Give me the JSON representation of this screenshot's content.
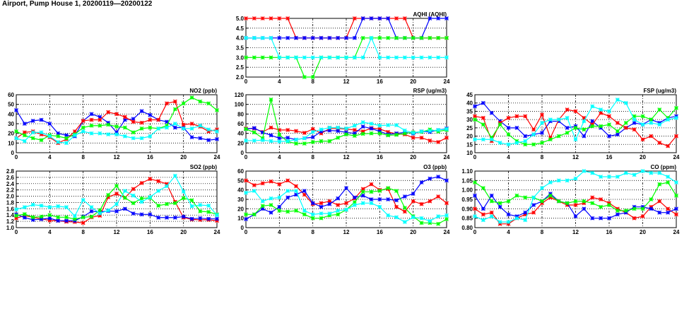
{
  "page_title": "Airport, Pump House 1, 20200119—20200122",
  "colors": {
    "red": "#ff0000",
    "blue": "#0000ff",
    "green": "#00ff00",
    "cyan": "#00ffff"
  },
  "chart_data": [
    {
      "id": "aqhi",
      "type": "line",
      "title": "AQHI (AQHI)",
      "xlim": [
        0,
        24
      ],
      "xticks": [
        0,
        4,
        8,
        12,
        16,
        20,
        24
      ],
      "ylim": [
        2.0,
        5.0
      ],
      "ystep": 0.5,
      "ydecimals": 1,
      "grid": true,
      "series": [
        {
          "color": "#ff0000",
          "values": [
            5,
            5,
            5,
            5,
            5,
            5,
            4,
            4,
            4,
            4,
            4,
            4,
            4,
            5,
            5,
            5,
            5,
            5,
            5,
            5,
            4,
            4,
            4,
            4,
            4
          ]
        },
        {
          "color": "#0000ff",
          "values": [
            4,
            4,
            4,
            4,
            4,
            4,
            4,
            4,
            4,
            4,
            4,
            4,
            4,
            4,
            5,
            5,
            5,
            5,
            4,
            4,
            4,
            4,
            5,
            5,
            5
          ]
        },
        {
          "color": "#00ff00",
          "values": [
            3,
            3,
            3,
            3,
            3,
            3,
            3,
            2,
            2,
            3,
            3,
            3,
            3,
            3,
            4,
            4,
            4,
            4,
            4,
            4,
            4,
            4,
            4,
            4,
            4
          ]
        },
        {
          "color": "#00ffff",
          "values": [
            4,
            4,
            4,
            4,
            3,
            3,
            3,
            3,
            3,
            3,
            3,
            3,
            3,
            3,
            3,
            4,
            3,
            3,
            3,
            3,
            3,
            3,
            3,
            3,
            3
          ]
        }
      ]
    },
    {
      "id": "no2",
      "type": "line",
      "title": "NO2 (ppb)",
      "xlim": [
        0,
        24
      ],
      "xticks": [
        0,
        4,
        8,
        12,
        16,
        20,
        24
      ],
      "ylim": [
        0,
        60
      ],
      "ystep": 10,
      "ydecimals": 0,
      "grid": true,
      "series": [
        {
          "color": "#0000ff",
          "values": [
            44,
            30,
            33,
            34,
            30,
            20,
            18,
            17,
            33,
            40,
            37,
            31,
            21,
            34,
            35,
            43,
            39,
            34,
            32,
            26,
            26,
            16,
            15,
            13,
            14
          ]
        },
        {
          "color": "#ff0000",
          "values": [
            15,
            21,
            22,
            19,
            16,
            10,
            14,
            22,
            33,
            34,
            34,
            42,
            40,
            37,
            32,
            31,
            34,
            34,
            51,
            53,
            29,
            30,
            27,
            22,
            24
          ]
        },
        {
          "color": "#00ff00",
          "values": [
            22,
            18,
            15,
            13,
            18,
            17,
            15,
            19,
            26,
            28,
            28,
            29,
            27,
            26,
            21,
            25,
            26,
            25,
            28,
            45,
            51,
            57,
            53,
            51,
            44
          ]
        },
        {
          "color": "#00ffff",
          "values": [
            15,
            12,
            21,
            21,
            17,
            11,
            10,
            18,
            22,
            20,
            20,
            19,
            19,
            17,
            15,
            15,
            17,
            25,
            26,
            30,
            25,
            25,
            28,
            24,
            22
          ]
        }
      ]
    },
    {
      "id": "rsp",
      "type": "line",
      "title": "RSP (ug/m3)",
      "xlim": [
        0,
        24
      ],
      "xticks": [
        0,
        4,
        8,
        12,
        16,
        20,
        24
      ],
      "ylim": [
        0,
        120
      ],
      "ystep": 20,
      "ydecimals": 0,
      "grid": true,
      "series": [
        {
          "color": "#ff0000",
          "values": [
            50,
            50,
            43,
            52,
            47,
            47,
            45,
            41,
            49,
            40,
            50,
            50,
            49,
            47,
            44,
            51,
            49,
            43,
            39,
            38,
            31,
            31,
            25,
            22,
            31
          ]
        },
        {
          "color": "#0000ff",
          "values": [
            49,
            51,
            42,
            36,
            30,
            31,
            27,
            30,
            32,
            44,
            46,
            45,
            42,
            40,
            54,
            50,
            44,
            38,
            40,
            42,
            40,
            44,
            43,
            47,
            50
          ]
        },
        {
          "color": "#00ff00",
          "values": [
            49,
            42,
            30,
            110,
            37,
            23,
            19,
            19,
            22,
            24,
            24,
            31,
            38,
            35,
            39,
            40,
            40,
            36,
            37,
            40,
            42,
            43,
            48,
            44,
            47
          ]
        },
        {
          "color": "#00ffff",
          "values": [
            25,
            25,
            26,
            24,
            23,
            24,
            27,
            30,
            43,
            48,
            52,
            52,
            50,
            56,
            63,
            60,
            56,
            57,
            57,
            46,
            41,
            44,
            45,
            47,
            49
          ]
        }
      ]
    },
    {
      "id": "fsp",
      "type": "line",
      "title": "FSP (ug/m3)",
      "xlim": [
        0,
        24
      ],
      "xticks": [
        0,
        4,
        8,
        12,
        16,
        20,
        24
      ],
      "ylim": [
        10,
        45
      ],
      "ystep": 5,
      "ydecimals": 0,
      "grid": true,
      "series": [
        {
          "color": "#0000ff",
          "values": [
            38,
            40,
            34,
            29,
            25,
            25,
            20,
            21,
            22,
            29,
            29,
            25,
            26,
            20,
            29,
            25,
            20,
            21,
            25,
            28,
            27,
            30,
            28,
            31,
            32
          ]
        },
        {
          "color": "#ff0000",
          "values": [
            32,
            31,
            17,
            28,
            31,
            32,
            32,
            24,
            33,
            19,
            30,
            36,
            35,
            31,
            27,
            34,
            32,
            28,
            25,
            24,
            18,
            20,
            16,
            14,
            20
          ]
        },
        {
          "color": "#00ff00",
          "values": [
            30,
            27,
            19,
            27,
            21,
            17,
            15,
            15,
            16,
            18,
            20,
            22,
            25,
            24,
            26,
            26,
            27,
            23,
            28,
            32,
            32,
            30,
            36,
            31,
            37
          ]
        },
        {
          "color": "#00ffff",
          "values": [
            18,
            18,
            18,
            16,
            15,
            16,
            17,
            21,
            28,
            30,
            30,
            31,
            18,
            29,
            38,
            36,
            35,
            42,
            40,
            30,
            27,
            28,
            27,
            30,
            31
          ]
        }
      ]
    },
    {
      "id": "so2",
      "type": "line",
      "title": "SO2 (ppb)",
      "xlim": [
        0,
        24
      ],
      "xticks": [
        0,
        4,
        8,
        12,
        16,
        20,
        24
      ],
      "ylim": [
        1.0,
        2.8
      ],
      "ystep": 0.2,
      "ydecimals": 1,
      "grid": true,
      "series": [
        {
          "color": "#ff0000",
          "values": [
            1.3,
            1.38,
            1.33,
            1.28,
            1.23,
            1.22,
            1.19,
            1.18,
            1.15,
            1.33,
            1.38,
            1.97,
            2.08,
            1.95,
            2.23,
            2.42,
            2.55,
            2.48,
            2.39,
            1.82,
            1.32,
            1.26,
            1.25,
            1.25,
            1.22
          ]
        },
        {
          "color": "#0000ff",
          "values": [
            1.42,
            1.32,
            1.25,
            1.27,
            1.3,
            1.22,
            1.22,
            1.22,
            1.35,
            1.52,
            1.5,
            1.53,
            1.52,
            1.6,
            1.45,
            1.42,
            1.42,
            1.32,
            1.32,
            1.32,
            1.35,
            1.28,
            1.3,
            1.28,
            1.28
          ]
        },
        {
          "color": "#00ff00",
          "values": [
            1.38,
            1.43,
            1.33,
            1.35,
            1.4,
            1.33,
            1.33,
            1.27,
            1.33,
            1.35,
            1.55,
            2.04,
            2.33,
            1.95,
            1.78,
            1.93,
            1.95,
            1.7,
            1.75,
            1.78,
            1.94,
            1.87,
            1.52,
            1.5,
            1.42
          ]
        },
        {
          "color": "#00ffff",
          "values": [
            1.58,
            1.65,
            1.73,
            1.7,
            1.65,
            1.68,
            1.65,
            1.37,
            1.88,
            1.65,
            1.45,
            1.55,
            1.75,
            2.17,
            2.02,
            1.82,
            1.97,
            2.17,
            2.32,
            2.65,
            2.15,
            1.68,
            1.72,
            1.7,
            1.4
          ]
        }
      ]
    },
    {
      "id": "o3",
      "type": "line",
      "title": "O3 (ppb)",
      "xlim": [
        0,
        24
      ],
      "xticks": [
        0,
        4,
        8,
        12,
        16,
        20,
        24
      ],
      "ylim": [
        0,
        60
      ],
      "ystep": 10,
      "ydecimals": 0,
      "grid": true,
      "series": [
        {
          "color": "#ff0000",
          "values": [
            50,
            45,
            47,
            49,
            46,
            50,
            44,
            35,
            25,
            26,
            28,
            24,
            26,
            31,
            41,
            46,
            40,
            41,
            22,
            17,
            28,
            25,
            28,
            33,
            26
          ]
        },
        {
          "color": "#0000ff",
          "values": [
            9,
            14,
            20,
            16,
            22,
            32,
            35,
            39,
            26,
            22,
            25,
            31,
            42,
            32,
            34,
            30,
            30,
            30,
            29,
            33,
            36,
            48,
            52,
            54,
            50
          ]
        },
        {
          "color": "#00ff00",
          "values": [
            14,
            14,
            23,
            24,
            18,
            17,
            18,
            14,
            10,
            10,
            13,
            14,
            19,
            27,
            38,
            38,
            39,
            42,
            39,
            21,
            12,
            5,
            5,
            4,
            9
          ]
        },
        {
          "color": "#00ffff",
          "values": [
            37,
            39,
            28,
            31,
            32,
            39,
            39,
            18,
            14,
            15,
            15,
            18,
            19,
            24,
            26,
            26,
            22,
            13,
            11,
            6,
            11,
            10,
            7,
            12,
            13
          ]
        }
      ]
    },
    {
      "id": "co",
      "type": "line",
      "title": "CO (ppm)",
      "xlim": [
        0,
        24
      ],
      "xticks": [
        0,
        4,
        8,
        12,
        16,
        20,
        24
      ],
      "ylim": [
        0.8,
        1.1
      ],
      "ystep": 0.05,
      "ydecimals": 2,
      "grid": true,
      "series": [
        {
          "color": "#ff0000",
          "values": [
            0.9,
            0.87,
            0.88,
            0.82,
            0.82,
            0.85,
            0.87,
            0.88,
            0.93,
            0.96,
            0.94,
            0.92,
            0.92,
            0.93,
            0.96,
            0.95,
            0.93,
            0.9,
            0.88,
            0.85,
            0.86,
            0.91,
            0.94,
            0.9,
            0.87
          ]
        },
        {
          "color": "#0000ff",
          "values": [
            0.97,
            0.9,
            0.97,
            0.91,
            0.87,
            0.86,
            0.88,
            0.92,
            0.94,
            0.98,
            0.94,
            0.93,
            0.86,
            0.9,
            0.85,
            0.85,
            0.85,
            0.87,
            0.88,
            0.91,
            0.91,
            0.9,
            0.88,
            0.88,
            0.9
          ]
        },
        {
          "color": "#00ff00",
          "values": [
            1.04,
            1.01,
            0.94,
            0.93,
            0.94,
            0.97,
            0.96,
            0.96,
            0.94,
            0.97,
            0.94,
            0.93,
            0.94,
            0.94,
            0.93,
            0.91,
            0.92,
            0.89,
            0.89,
            0.9,
            0.9,
            0.95,
            1.03,
            1.04,
            0.97
          ]
        },
        {
          "color": "#00ffff",
          "values": [
            0.86,
            0.84,
            0.86,
            0.83,
            0.83,
            0.85,
            0.84,
            0.96,
            1.01,
            1.04,
            1.05,
            1.05,
            1.06,
            1.1,
            1.09,
            1.07,
            1.07,
            1.07,
            1.09,
            1.08,
            1.1,
            1.09,
            1.09,
            1.07,
            1.04
          ]
        }
      ]
    }
  ]
}
